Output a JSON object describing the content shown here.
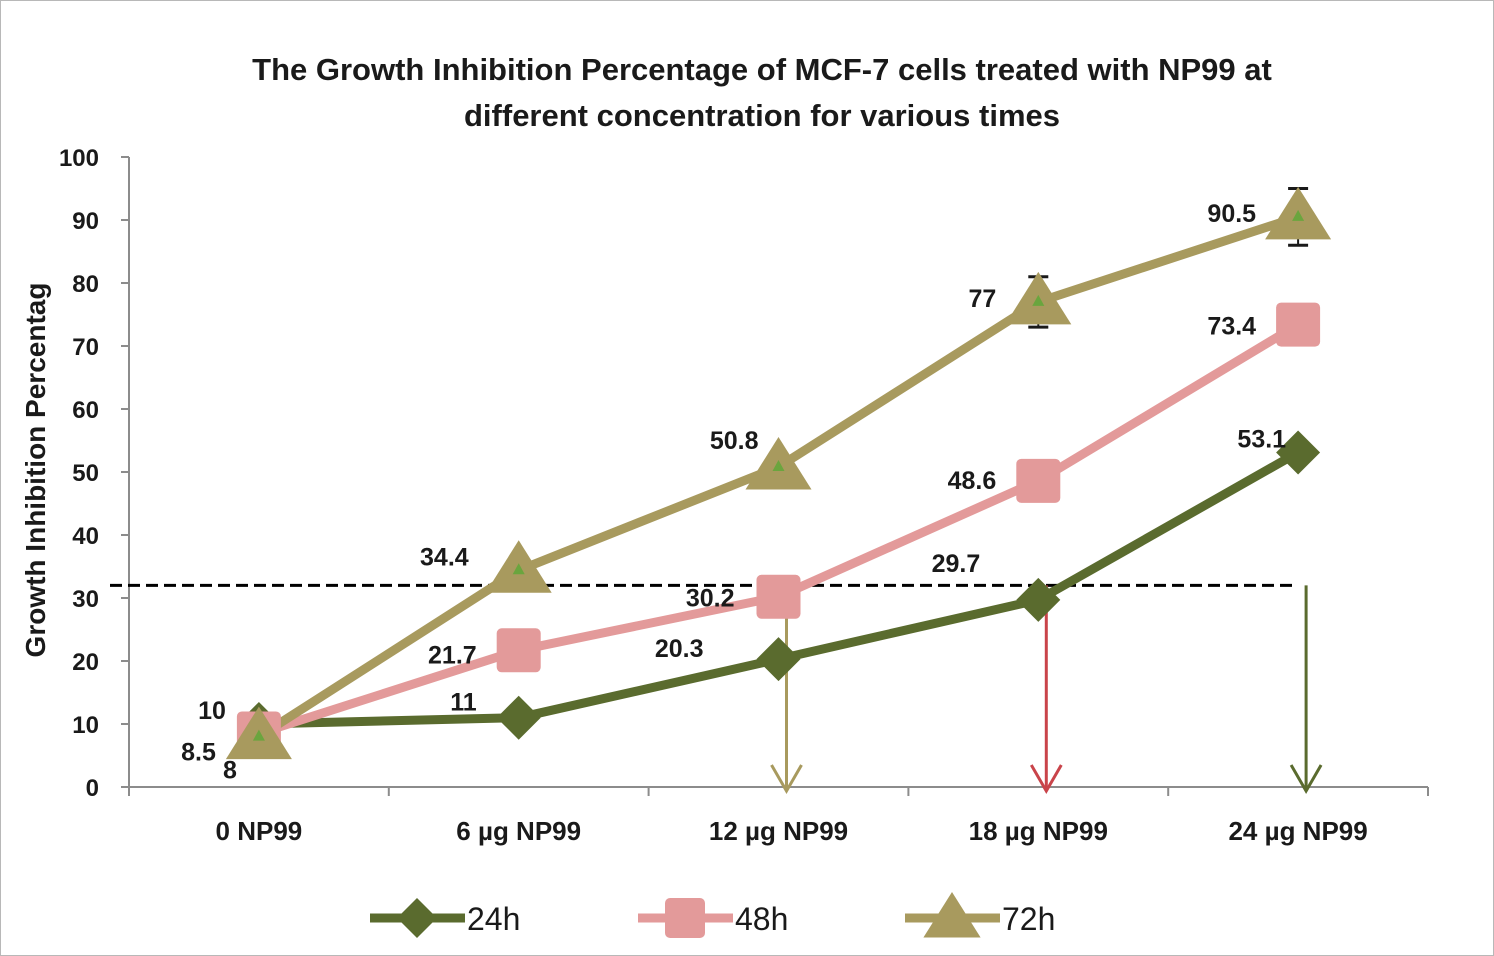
{
  "chart_data": {
    "type": "line",
    "title_lines": [
      "The Growth Inhibition Percentage of MCF-7 cells treated with NP99 at",
      "different concentration for various times"
    ],
    "ylabel": "Growth Inhibition Percentag",
    "xlabel": "",
    "ylim": [
      0,
      100
    ],
    "y_ticks": [
      0,
      10,
      20,
      30,
      40,
      50,
      60,
      70,
      80,
      90,
      100
    ],
    "y_tick_labels": [
      "0",
      "10",
      "20",
      "30",
      "40",
      "50",
      "60",
      "70",
      "80",
      "90",
      "100"
    ],
    "categories": [
      "0 NP99",
      "6 µg NP99",
      "12 µg NP99",
      "18 µg NP99",
      "24 µg NP99"
    ],
    "series": [
      {
        "name": "24h",
        "values": [
          10,
          11,
          20.3,
          29.7,
          53.1
        ],
        "labels": [
          "10",
          "11",
          "20.3",
          "29.7",
          "53.1"
        ],
        "color": "#5a6b2e",
        "marker": "diamond"
      },
      {
        "name": "48h",
        "values": [
          8.5,
          21.7,
          30.2,
          48.6,
          73.4
        ],
        "labels": [
          "8.5",
          "21.7",
          "30.2",
          "48.6",
          "73.4"
        ],
        "color": "#e39a9a",
        "marker": "square"
      },
      {
        "name": "72h",
        "values": [
          8,
          34.4,
          50.8,
          77,
          90.5
        ],
        "labels": [
          "8",
          "34.4",
          "50.8",
          "77",
          "90.5"
        ],
        "color": "#a89a5e",
        "marker": "triangle",
        "marker_inner_color": "#6aa53e",
        "error_bars": [
          null,
          null,
          null,
          4,
          4.5
        ]
      }
    ],
    "reference_line": {
      "y": 32,
      "style": "dashed",
      "color": "#000000"
    },
    "threshold_arrows": [
      {
        "category_index": 2,
        "color": "#a89a5e"
      },
      {
        "category_index": 3,
        "color": "#c9444a"
      },
      {
        "category_index": 4,
        "color": "#5a6b2e"
      }
    ],
    "grid": false,
    "legend_position": "bottom"
  }
}
